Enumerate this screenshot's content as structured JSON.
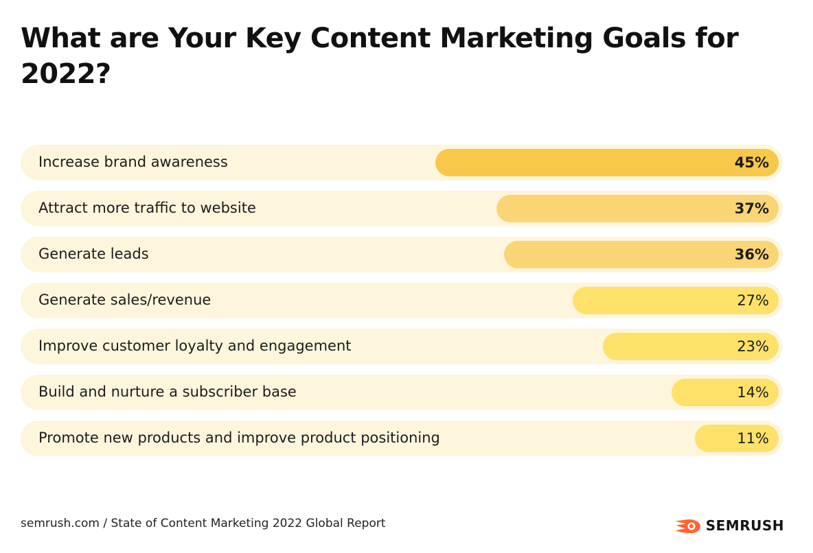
{
  "title": "What are Your Key Content Marketing Goals for 2022?",
  "footer": {
    "source": "semrush.com / State of Content Marketing 2022 Global Report",
    "brand": "SEMRUSH",
    "brand_icon": "semrush-flame-logo-icon"
  },
  "colors": {
    "track": "#fdf5dc",
    "top": "#f8c84a",
    "mid": "#fad576",
    "low": "#fde16a",
    "logo": "#ff642d"
  },
  "chart_data": {
    "type": "bar",
    "orientation": "horizontal",
    "title": "What are Your Key Content Marketing Goals for 2022?",
    "categories": [
      "Increase brand awareness",
      "Attract more traffic to website",
      "Generate leads",
      "Generate sales/revenue",
      "Improve customer loyalty and engagement",
      "Build and nurture a subscriber base",
      "Promote new products and improve product positioning"
    ],
    "values": [
      45,
      37,
      36,
      27,
      23,
      14,
      11
    ],
    "value_labels": [
      "45%",
      "37%",
      "36%",
      "27%",
      "23%",
      "14%",
      "11%"
    ],
    "unit": "%",
    "xlim": [
      0,
      100
    ]
  }
}
